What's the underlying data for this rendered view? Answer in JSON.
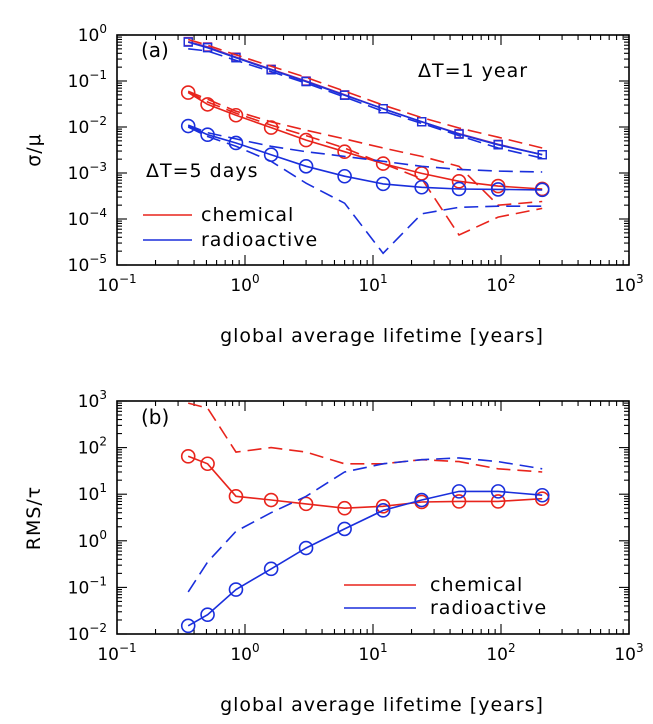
{
  "colors": {
    "chemical": "#e8241c",
    "radioactive": "#1a2fdc",
    "purple": "#9c2c8c"
  },
  "chart_data": [
    {
      "panel": "(a)",
      "type": "line",
      "xlabel": "global average lifetime [years]",
      "ylabel": "σ/μ",
      "xscale": "log",
      "yscale": "log",
      "xlim": [
        0.1,
        1000
      ],
      "ylim": [
        1e-05,
        1
      ],
      "xticks": [
        "10⁻¹",
        "10⁰",
        "10¹",
        "10²",
        "10³"
      ],
      "yticks": [
        "10⁻⁵",
        "10⁻⁴",
        "10⁻³",
        "10⁻²",
        "10⁻¹",
        "10⁰"
      ],
      "annotations": [
        "ΔT=1 year",
        "ΔT=5 days"
      ],
      "legend": {
        "position": "bottom-left",
        "entries": [
          "chemical",
          "radioactive"
        ]
      },
      "x": [
        0.36,
        0.51,
        0.85,
        1.6,
        3.0,
        6.0,
        12,
        24,
        47,
        95,
        210
      ],
      "series": [
        {
          "group": "ΔT=1 year",
          "kind": "chemical",
          "line": "solid",
          "marker": "square",
          "values": [
            0.72,
            0.55,
            0.33,
            0.18,
            0.1,
            0.05,
            0.025,
            0.013,
            0.0072,
            0.0042,
            0.0025
          ]
        },
        {
          "group": "ΔT=1 year",
          "kind": "radioactive",
          "line": "solid",
          "marker": "square",
          "values": [
            0.7,
            0.53,
            0.32,
            0.175,
            0.097,
            0.049,
            0.025,
            0.013,
            0.007,
            0.0041,
            0.0025
          ]
        },
        {
          "group": "ΔT=1 year",
          "kind": "chemical",
          "line": "dashed",
          "marker": "none",
          "values": [
            0.8,
            0.6,
            0.37,
            0.21,
            0.12,
            0.06,
            0.03,
            0.016,
            0.0095,
            0.006,
            0.0035
          ]
        },
        {
          "group": "ΔT=1 year",
          "kind": "radioactive",
          "line": "dashed",
          "marker": "none",
          "values": [
            0.5,
            0.45,
            0.28,
            0.16,
            0.09,
            0.045,
            0.022,
            0.012,
            0.0065,
            0.0035,
            0.0021
          ]
        },
        {
          "group": "ΔT=5 days",
          "kind": "chemical",
          "line": "solid",
          "marker": "circle",
          "values": [
            0.056,
            0.031,
            0.018,
            0.0097,
            0.0052,
            0.0029,
            0.0016,
            0.00098,
            0.00066,
            0.00052,
            0.00045
          ]
        },
        {
          "group": "ΔT=5 days",
          "kind": "chemical",
          "line": "dashed",
          "marker": "none",
          "values": [
            0.06,
            0.04,
            0.022,
            0.013,
            0.0085,
            0.0055,
            0.0035,
            0.0023,
            0.0014,
            0.0002,
            0.00024
          ]
        },
        {
          "group": "ΔT=5 days",
          "kind": "chemical",
          "line": "dashed",
          "marker": "none",
          "values": [
            0.058,
            0.035,
            0.02,
            0.011,
            0.0065,
            0.0035,
            0.0016,
            0.00075,
            4.5e-05,
            0.00011,
            0.00017
          ]
        },
        {
          "group": "ΔT=5 days",
          "kind": "radioactive",
          "line": "solid",
          "marker": "circle",
          "values": [
            0.0105,
            0.0068,
            0.0045,
            0.0025,
            0.0014,
            0.00085,
            0.00058,
            0.00049,
            0.00045,
            0.00044,
            0.00043
          ]
        },
        {
          "group": "ΔT=5 days",
          "kind": "radioactive",
          "line": "dashed",
          "marker": "none",
          "values": [
            0.011,
            0.0075,
            0.0055,
            0.0038,
            0.0029,
            0.0023,
            0.0018,
            0.0014,
            0.0012,
            0.0011,
            0.00105
          ]
        },
        {
          "group": "ΔT=5 days",
          "kind": "radioactive",
          "line": "dashed",
          "marker": "none",
          "values": [
            0.01,
            0.0062,
            0.0038,
            0.0018,
            0.0006,
            0.00022,
            1.8e-05,
            0.00013,
            0.00018,
            0.00019,
            0.00019
          ]
        }
      ]
    },
    {
      "panel": "(b)",
      "type": "line",
      "xlabel": "global average lifetime [years]",
      "ylabel": "RMS/τ",
      "xscale": "log",
      "yscale": "log",
      "xlim": [
        0.1,
        1000
      ],
      "ylim": [
        0.01,
        1000
      ],
      "xticks": [
        "10⁻¹",
        "10⁰",
        "10¹",
        "10²",
        "10³"
      ],
      "yticks": [
        "10⁻²",
        "10⁻¹",
        "10⁰",
        "10¹",
        "10²",
        "10³"
      ],
      "legend": {
        "position": "bottom-right",
        "entries": [
          "chemical",
          "radioactive"
        ]
      },
      "x": [
        0.36,
        0.51,
        0.85,
        1.6,
        3.0,
        6.0,
        12,
        24,
        47,
        95,
        210
      ],
      "series": [
        {
          "kind": "chemical",
          "line": "solid",
          "marker": "circle",
          "values": [
            65,
            45,
            9,
            7.5,
            6.2,
            5.0,
            5.5,
            6.8,
            7.0,
            7.0,
            8.0
          ]
        },
        {
          "kind": "chemical",
          "line": "dashed",
          "marker": "none",
          "values": [
            900,
            700,
            80,
            100,
            80,
            45,
            45,
            55,
            50,
            35,
            30
          ]
        },
        {
          "kind": "radioactive",
          "line": "solid",
          "marker": "circle",
          "values": [
            0.015,
            0.026,
            0.09,
            0.25,
            0.7,
            1.8,
            4.5,
            7.5,
            11.5,
            11.5,
            9.5
          ]
        },
        {
          "kind": "radioactive",
          "line": "dashed",
          "marker": "none",
          "values": [
            0.08,
            0.35,
            1.6,
            4.0,
            9.0,
            30,
            45,
            55,
            60,
            50,
            35
          ]
        }
      ]
    }
  ]
}
